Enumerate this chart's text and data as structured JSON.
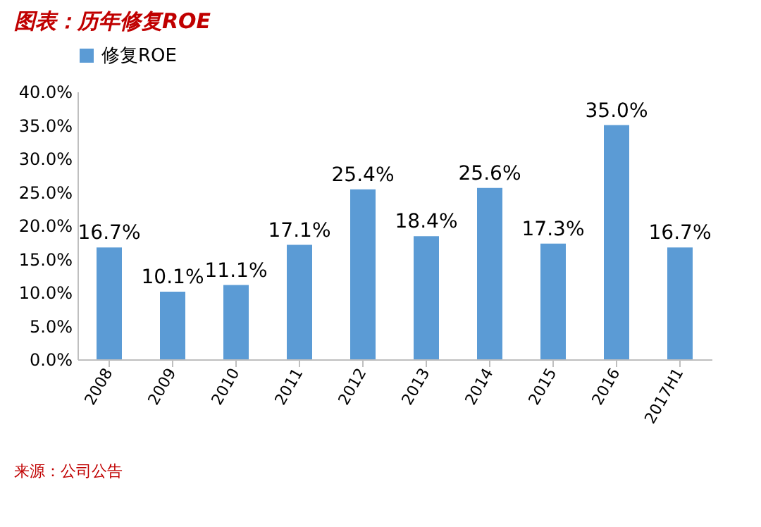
{
  "chart_data": {
    "type": "bar",
    "title": "图表：历年修复ROE",
    "categories": [
      "2008",
      "2009",
      "2010",
      "2011",
      "2012",
      "2013",
      "2014",
      "2015",
      "2016",
      "2017H1"
    ],
    "series": [
      {
        "name": "修复ROE",
        "color": "#5b9bd5",
        "values": [
          16.7,
          10.1,
          11.1,
          17.1,
          25.4,
          18.4,
          25.6,
          17.3,
          35.0,
          16.7
        ],
        "value_labels": [
          "16.7%",
          "10.1%",
          "11.1%",
          "17.1%",
          "25.4%",
          "18.4%",
          "25.6%",
          "17.3%",
          "35.0%",
          "16.7%"
        ]
      }
    ],
    "ylim": [
      0,
      40
    ],
    "yticks": [
      {
        "value": 0,
        "label": "0.0%"
      },
      {
        "value": 5,
        "label": "5.0%"
      },
      {
        "value": 10,
        "label": "10.0%"
      },
      {
        "value": 15,
        "label": "15.0%"
      },
      {
        "value": 20,
        "label": "20.0%"
      },
      {
        "value": 25,
        "label": "25.0%"
      },
      {
        "value": 30,
        "label": "30.0%"
      },
      {
        "value": 35,
        "label": "35.0%"
      },
      {
        "value": 40,
        "label": "40.0%"
      }
    ],
    "grid": false,
    "legend": "top",
    "annotations": [
      "来源：公司公告"
    ]
  }
}
